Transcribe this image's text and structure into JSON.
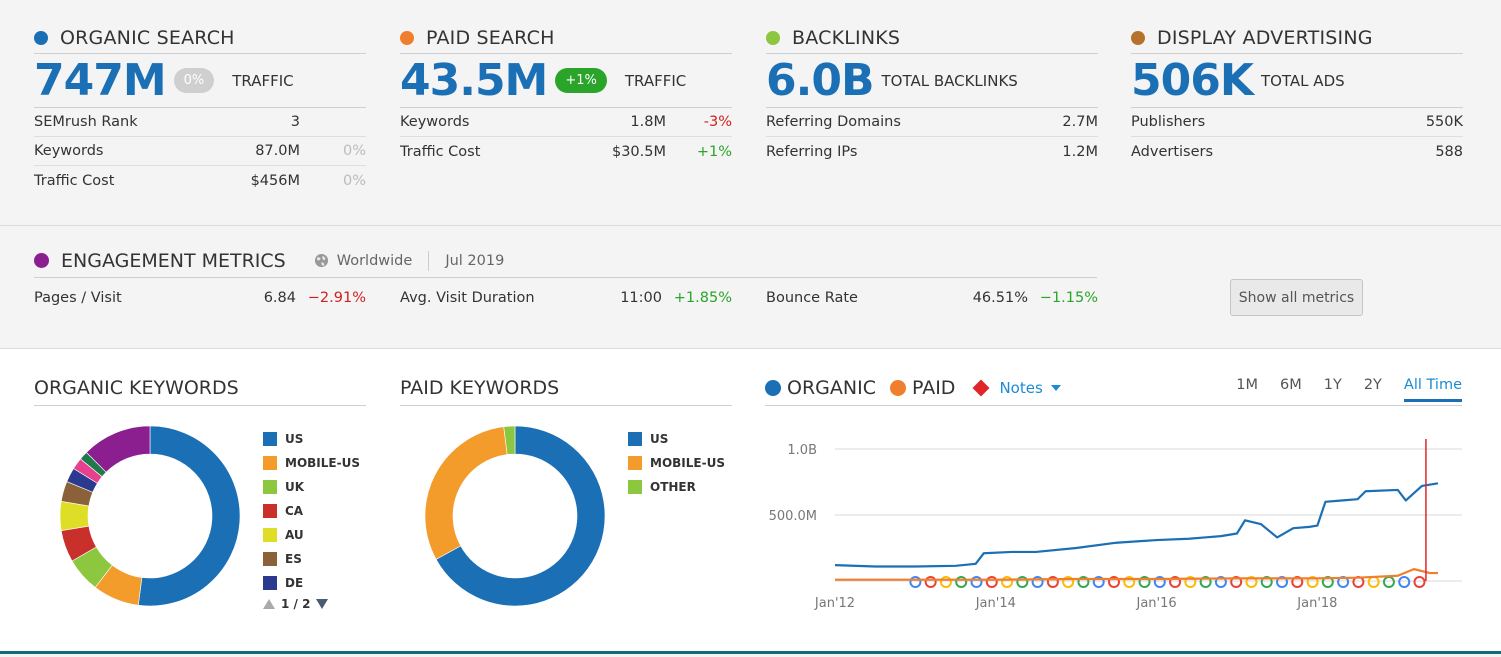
{
  "summary": {
    "organic": {
      "title": "ORGANIC SEARCH",
      "color": "#1b6fb5",
      "value": "747M",
      "badge": "0%",
      "caption": "TRAFFIC",
      "rows": [
        {
          "label": "SEMrush Rank",
          "value": "3",
          "delta": ""
        },
        {
          "label": "Keywords",
          "value": "87.0M",
          "delta": "0%"
        },
        {
          "label": "Traffic Cost",
          "value": "$456M",
          "delta": "0%"
        }
      ]
    },
    "paid": {
      "title": "PAID SEARCH",
      "color": "#f07f2d",
      "value": "43.5M",
      "badge": "+1%",
      "caption": "TRAFFIC",
      "rows": [
        {
          "label": "Keywords",
          "value": "1.8M",
          "delta": "-3%"
        },
        {
          "label": "Traffic Cost",
          "value": "$30.5M",
          "delta": "+1%"
        }
      ]
    },
    "backlinks": {
      "title": "BACKLINKS",
      "color": "#8dc63f",
      "value": "6.0B",
      "caption": "TOTAL BACKLINKS",
      "rows": [
        {
          "label": "Referring Domains",
          "value": "2.7M"
        },
        {
          "label": "Referring IPs",
          "value": "1.2M"
        }
      ]
    },
    "display": {
      "title": "DISPLAY ADVERTISING",
      "color": "#b5722a",
      "value": "506K",
      "caption": "TOTAL ADS",
      "rows": [
        {
          "label": "Publishers",
          "value": "550K"
        },
        {
          "label": "Advertisers",
          "value": "588"
        }
      ]
    }
  },
  "engagement": {
    "title": "ENGAGEMENT METRICS",
    "color": "#8b1f8f",
    "region": "Worldwide",
    "date": "Jul 2019",
    "metrics": [
      {
        "label": "Pages / Visit",
        "value": "6.84",
        "delta": "−2.91%"
      },
      {
        "label": "Avg. Visit Duration",
        "value": "11:00",
        "delta": "+1.85%"
      },
      {
        "label": "Bounce Rate",
        "value": "46.51%",
        "delta": "−1.15%"
      }
    ],
    "button": "Show all metrics"
  },
  "organic_keywords": {
    "title": "ORGANIC KEYWORDS",
    "legend": [
      {
        "label": "US",
        "color": "#1b6fb5"
      },
      {
        "label": "MOBILE-US",
        "color": "#f39c2b"
      },
      {
        "label": "UK",
        "color": "#8dc63f"
      },
      {
        "label": "CA",
        "color": "#c9302c"
      },
      {
        "label": "AU",
        "color": "#dede27"
      },
      {
        "label": "ES",
        "color": "#8b6139"
      },
      {
        "label": "DE",
        "color": "#2b3a8f"
      }
    ],
    "pager": "1 / 2"
  },
  "paid_keywords": {
    "title": "PAID KEYWORDS",
    "legend": [
      {
        "label": "US",
        "color": "#1b6fb5"
      },
      {
        "label": "MOBILE-US",
        "color": "#f39c2b"
      },
      {
        "label": "OTHER",
        "color": "#8dc63f"
      }
    ]
  },
  "trend": {
    "organic_label": "ORGANIC",
    "organic_color": "#1b6fb5",
    "paid_label": "PAID",
    "paid_color": "#f07f2d",
    "notes_label": "Notes",
    "ranges": [
      "1M",
      "6M",
      "1Y",
      "2Y",
      "All Time"
    ],
    "active_range": "All Time"
  },
  "chart_data": [
    {
      "type": "pie",
      "title": "ORGANIC KEYWORDS",
      "categories": [
        "US",
        "MOBILE-US",
        "UK",
        "CA",
        "AU",
        "ES",
        "DE",
        "other",
        "other",
        "other"
      ],
      "values": [
        50,
        8,
        6,
        5.5,
        5,
        3.5,
        2.5,
        2,
        1.5,
        12
      ],
      "colors": [
        "#1b6fb5",
        "#f39c2b",
        "#8dc63f",
        "#c9302c",
        "#dede27",
        "#8b6139",
        "#2b3a8f",
        "#e6418f",
        "#1e7a4a",
        "#8b1f8f"
      ]
    },
    {
      "type": "pie",
      "title": "PAID KEYWORDS",
      "categories": [
        "US",
        "MOBILE-US",
        "OTHER"
      ],
      "values": [
        67,
        31,
        2
      ],
      "colors": [
        "#1b6fb5",
        "#f39c2b",
        "#8dc63f"
      ]
    },
    {
      "type": "line",
      "xlabel": "",
      "ylabel": "",
      "x_ticks": [
        "Jan'12",
        "Jan'14",
        "Jan'16",
        "Jan'18"
      ],
      "y_ticks": [
        "1.0B",
        "500.0M"
      ],
      "ylim": [
        0,
        1000000000
      ],
      "xlim": [
        2012.0,
        2019.55
      ],
      "grid": true,
      "series": [
        {
          "name": "ORGANIC",
          "color": "#1b6fb5",
          "x": [
            2012.0,
            2012.5,
            2013.0,
            2013.5,
            2013.75,
            2013.85,
            2014.2,
            2014.5,
            2015.0,
            2015.5,
            2016.0,
            2016.4,
            2016.6,
            2016.8,
            2017.0,
            2017.1,
            2017.3,
            2017.5,
            2017.7,
            2017.9,
            2018.0,
            2018.1,
            2018.3,
            2018.5,
            2018.6,
            2019.0,
            2019.1,
            2019.3,
            2019.5
          ],
          "values": [
            120000000,
            110000000,
            110000000,
            115000000,
            130000000,
            210000000,
            220000000,
            220000000,
            250000000,
            290000000,
            310000000,
            320000000,
            330000000,
            340000000,
            360000000,
            460000000,
            430000000,
            330000000,
            400000000,
            410000000,
            420000000,
            600000000,
            610000000,
            620000000,
            680000000,
            690000000,
            610000000,
            720000000,
            740000000
          ]
        },
        {
          "name": "PAID",
          "color": "#f07f2d",
          "x": [
            2012.0,
            2013.0,
            2014.0,
            2015.0,
            2016.0,
            2017.0,
            2018.0,
            2018.5,
            2019.0,
            2019.2,
            2019.4,
            2019.5
          ],
          "values": [
            10000000,
            10000000,
            10000000,
            15000000,
            15000000,
            20000000,
            20000000,
            25000000,
            40000000,
            90000000,
            60000000,
            60000000
          ]
        }
      ]
    }
  ]
}
